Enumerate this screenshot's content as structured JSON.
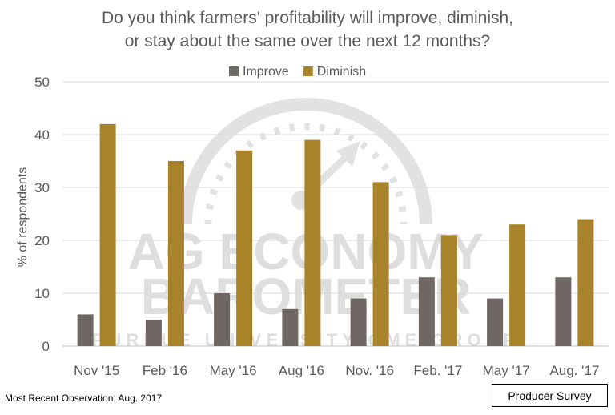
{
  "title_line1": "Do you think farmers' profitability will improve, diminish,",
  "title_line2": "or stay about the same over the next 12 months?",
  "footnote": "Most Recent Observation: Aug. 2017",
  "source_label": "Producer Survey",
  "watermark": {
    "line1": "AG ECONOMY",
    "line2": "BAROMETER",
    "line3": "PURDUE UNIVERSITY  CME GROUP"
  },
  "colors": {
    "improve": "#6e6763",
    "diminish": "#a8832a",
    "axis_text": "#595959",
    "gridline": "#d9d9d9"
  },
  "chart_data": {
    "type": "bar",
    "title": "Do you think farmers' profitability will improve, diminish, or stay about the same over the next 12 months?",
    "ylabel": "% of respondents",
    "xlabel": "",
    "ylim": [
      0,
      50
    ],
    "yticks": [
      0,
      10,
      20,
      30,
      40,
      50
    ],
    "grid": true,
    "legend_position": "top-center",
    "categories": [
      "Nov '15",
      "Feb '16",
      "May '16",
      "Aug '16",
      "Nov. '16",
      "Feb. '17",
      "May '17",
      "Aug. '17"
    ],
    "series": [
      {
        "name": "Improve",
        "values": [
          6,
          5,
          10,
          7,
          9,
          13,
          9,
          13
        ]
      },
      {
        "name": "Diminish",
        "values": [
          42,
          35,
          37,
          39,
          31,
          21,
          23,
          24
        ]
      }
    ]
  }
}
